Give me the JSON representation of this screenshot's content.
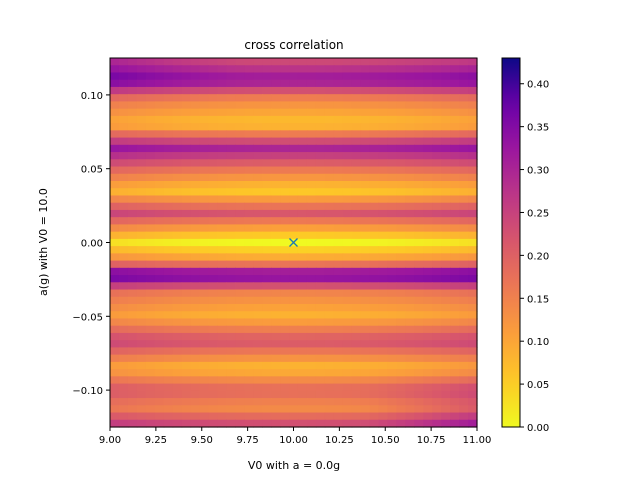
{
  "chart_data": {
    "type": "heatmap",
    "title": "cross correlation",
    "xlabel": "V0 with a = 0.0g",
    "ylabel": "a(g) with V0 = 10.0",
    "xlim": [
      9.0,
      11.0
    ],
    "ylim": [
      -0.125,
      0.125
    ],
    "x_ticks": [
      "9.00",
      "9.25",
      "9.50",
      "9.75",
      "10.00",
      "10.25",
      "10.50",
      "10.75",
      "11.00"
    ],
    "y_ticks": [
      "0.10",
      "0.05",
      "0.00",
      "−0.05",
      "−0.10"
    ],
    "colormap": "plasma_r",
    "colorbar_range": [
      0.0,
      0.43
    ],
    "colorbar_ticks": [
      "0.00",
      "0.05",
      "0.10",
      "0.15",
      "0.20",
      "0.25",
      "0.30",
      "0.35",
      "0.40"
    ],
    "grid": false,
    "marker": {
      "symbol": "x",
      "x": 10.0,
      "y": 0.0,
      "color": "#1f77b4"
    },
    "bands": [
      {
        "a": 0.125,
        "value": 0.22
      },
      {
        "a": 0.11,
        "value": 0.33
      },
      {
        "a": 0.097,
        "value": 0.14
      },
      {
        "a": 0.08,
        "value": 0.06
      },
      {
        "a": 0.064,
        "value": 0.3
      },
      {
        "a": 0.048,
        "value": 0.15
      },
      {
        "a": 0.035,
        "value": 0.05
      },
      {
        "a": 0.02,
        "value": 0.22
      },
      {
        "a": 0.0,
        "value": 0.0
      },
      {
        "a": -0.013,
        "value": 0.12
      },
      {
        "a": -0.022,
        "value": 0.38
      },
      {
        "a": -0.033,
        "value": 0.15
      },
      {
        "a": -0.05,
        "value": 0.08
      },
      {
        "a": -0.067,
        "value": 0.22
      },
      {
        "a": -0.085,
        "value": 0.07
      },
      {
        "a": -0.1,
        "value": 0.19
      },
      {
        "a": -0.112,
        "value": 0.13
      },
      {
        "a": -0.125,
        "value": 0.25
      }
    ]
  }
}
